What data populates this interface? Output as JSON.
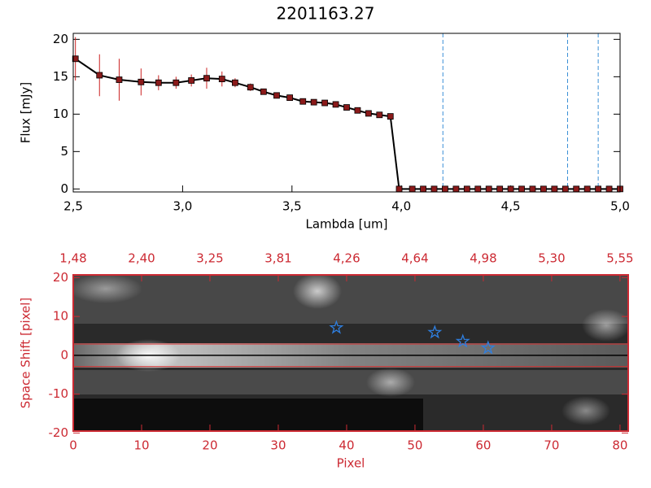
{
  "chart_data": [
    {
      "type": "line",
      "title": "2201163.27",
      "xlabel": "Lambda [um]",
      "ylabel": "Flux [mJy]",
      "x": [
        2.51,
        2.62,
        2.71,
        2.81,
        2.89,
        2.97,
        3.04,
        3.11,
        3.18,
        3.24,
        3.31,
        3.37,
        3.43,
        3.49,
        3.55,
        3.6,
        3.65,
        3.7,
        3.75,
        3.8,
        3.85,
        3.9,
        3.95,
        3.99,
        4.05,
        4.1,
        4.15,
        4.2,
        4.25,
        4.3,
        4.35,
        4.4,
        4.45,
        4.5,
        4.55,
        4.6,
        4.65,
        4.7,
        4.75,
        4.8,
        4.85,
        4.9,
        4.95,
        5.0
      ],
      "series": [
        {
          "color": "#000000",
          "marker_color": "#8b1a1a",
          "error_color": "#cc2222",
          "values": [
            17.4,
            15.2,
            14.6,
            14.3,
            14.2,
            14.2,
            14.5,
            14.8,
            14.7,
            14.2,
            13.6,
            13.0,
            12.5,
            12.2,
            11.7,
            11.6,
            11.5,
            11.3,
            10.9,
            10.5,
            10.1,
            9.9,
            9.7,
            0,
            0,
            0,
            0,
            0,
            0,
            0,
            0,
            0,
            0,
            0,
            0,
            0,
            0,
            0,
            0,
            0,
            0,
            0,
            0,
            0
          ],
          "errors": [
            2.9,
            2.8,
            2.8,
            1.8,
            1.0,
            0.8,
            0.8,
            1.4,
            1.0,
            0.6,
            0.5,
            0.4,
            0.3,
            0.3,
            0.3,
            0.3,
            0.3,
            0.3,
            0.3,
            0.3,
            0.3,
            0.3,
            0.3,
            0,
            0,
            0,
            0,
            0,
            0,
            0,
            0,
            0,
            0,
            0,
            0,
            0,
            0,
            0,
            0,
            0,
            0,
            0,
            0,
            0
          ]
        }
      ],
      "vlines": [
        4.19,
        4.76,
        4.9
      ],
      "vline_color": "#3a8fd6",
      "xlim": [
        2.5,
        5.0
      ],
      "ylim": [
        -0.4,
        20.8
      ],
      "xticks": [
        {
          "value": 2.5,
          "label": "2,5"
        },
        {
          "value": 3.0,
          "label": "3,0"
        },
        {
          "value": 3.5,
          "label": "3,5"
        },
        {
          "value": 4.0,
          "label": "4,0"
        },
        {
          "value": 4.5,
          "label": "4,5"
        },
        {
          "value": 5.0,
          "label": "5,0"
        }
      ],
      "yticks": [
        0,
        5,
        10,
        15,
        20
      ]
    },
    {
      "type": "image",
      "xlabel": "Pixel",
      "ylabel": "Space Shift [pixel]",
      "axis_color": "#cc2a33",
      "xlim": [
        0,
        81.2
      ],
      "ylim": [
        -19.5,
        20.7
      ],
      "xticks": [
        0,
        10,
        20,
        30,
        40,
        50,
        60,
        70,
        80
      ],
      "x2ticks": [
        {
          "value": 0,
          "label": "1,48"
        },
        {
          "value": 10,
          "label": "2,40"
        },
        {
          "value": 20,
          "label": "3,25"
        },
        {
          "value": 30,
          "label": "3,81"
        },
        {
          "value": 40,
          "label": "4,26"
        },
        {
          "value": 50,
          "label": "4,64"
        },
        {
          "value": 60,
          "label": "4,98"
        },
        {
          "value": 70,
          "label": "5,30"
        },
        {
          "value": 80,
          "label": "5,55"
        }
      ],
      "yticks": [
        -20,
        -10,
        0,
        10,
        20
      ],
      "hlines": [
        2.9,
        -2.9
      ],
      "hline_color": "#d42a2a",
      "center_line": 0,
      "stars": {
        "color": "#2f7fe0",
        "x": [
          38.5,
          52.9,
          57.0,
          60.7
        ],
        "y": [
          7.1,
          5.9,
          3.6,
          1.9
        ]
      }
    }
  ]
}
